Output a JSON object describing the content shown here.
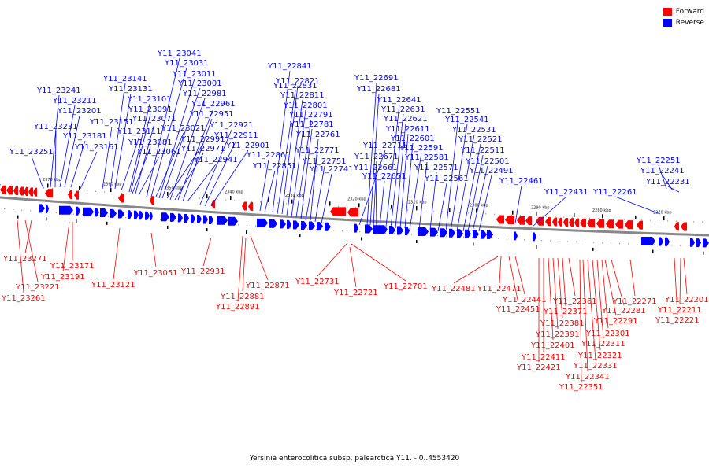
{
  "caption": "Yersinia enterocolitica subsp. palearctica Y11. - 0..4553420",
  "legend": {
    "forward": {
      "label": "Forward",
      "color": "#ff0000"
    },
    "reverse": {
      "label": "Reverse",
      "color": "#0000ff"
    }
  },
  "scale_ticks": [
    "2370 kbp",
    "2360 kbp",
    "2350 kbp",
    "2340 kbp",
    "2330 kbp",
    "2320 kbp",
    "2310 kbp",
    "2300 kbp",
    "2290 kbp",
    "2280 kbp",
    "2270 kbp"
  ],
  "reverse_genes": [
    "Y11_23251",
    "Y11_23241",
    "Y11_23231",
    "Y11_23211",
    "Y11_23201",
    "Y11_23181",
    "Y11_23161",
    "Y11_23151",
    "Y11_23141",
    "Y11_23131",
    "Y11_23111",
    "Y11_23101",
    "Y11_23091",
    "Y11_23081",
    "Y11_23071",
    "Y11_23061",
    "Y11_23041",
    "Y11_23031",
    "Y11_23021",
    "Y11_23011",
    "Y11_23001",
    "Y11_22991",
    "Y11_22981",
    "Y11_22971",
    "Y11_22961",
    "Y11_22951",
    "Y11_22941",
    "Y11_22921",
    "Y11_22911",
    "Y11_22901",
    "Y11_22861",
    "Y11_22851",
    "Y11_22841",
    "Y11_22831",
    "Y11_22821",
    "Y11_22811",
    "Y11_22801",
    "Y11_22791",
    "Y11_22781",
    "Y11_22771",
    "Y11_22761",
    "Y11_22751",
    "Y11_22741",
    "Y11_22711",
    "Y11_22691",
    "Y11_22681",
    "Y11_22671",
    "Y11_22661",
    "Y11_22651",
    "Y11_22641",
    "Y11_22631",
    "Y11_22621",
    "Y11_22611",
    "Y11_22601",
    "Y11_22591",
    "Y11_22581",
    "Y11_22571",
    "Y11_22561",
    "Y11_22551",
    "Y11_22541",
    "Y11_22531",
    "Y11_22521",
    "Y11_22511",
    "Y11_22501",
    "Y11_22491",
    "Y11_22461",
    "Y11_22431",
    "Y11_22261",
    "Y11_22251",
    "Y11_22241",
    "Y11_22231"
  ],
  "forward_genes": [
    "Y11_23271",
    "Y11_23261",
    "Y11_23221",
    "Y11_23191",
    "Y11_23171",
    "Y11_23121",
    "Y11_23051",
    "Y11_22931",
    "Y11_22891",
    "Y11_22881",
    "Y11_22871",
    "Y11_22731",
    "Y11_22721",
    "Y11_22701",
    "Y11_22481",
    "Y11_22471",
    "Y11_22451",
    "Y11_22441",
    "Y11_22421",
    "Y11_22411",
    "Y11_22401",
    "Y11_22391",
    "Y11_22381",
    "Y11_22371",
    "Y11_22361",
    "Y11_22351",
    "Y11_22341",
    "Y11_22331",
    "Y11_22321",
    "Y11_22311",
    "Y11_22301",
    "Y11_22291",
    "Y11_22281",
    "Y11_22271",
    "Y11_22221",
    "Y11_22211",
    "Y11_22201"
  ]
}
